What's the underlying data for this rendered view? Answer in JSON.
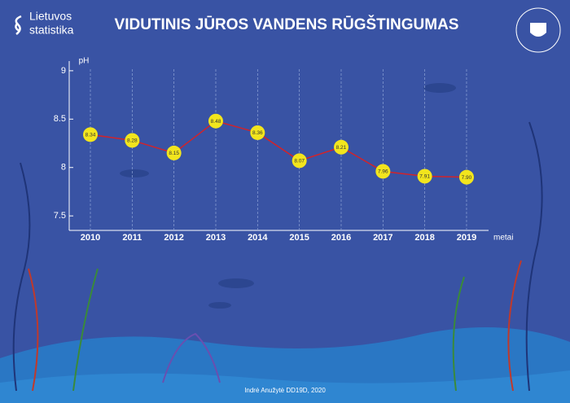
{
  "brand": [
    "Lietuvos",
    "statistika"
  ],
  "credit": "Indrė Anužytė DD19D, 2020",
  "chart_data": {
    "type": "line",
    "title": "VIDUTINIS JŪROS VANDENS RŪGŠTINGUMAS",
    "y_label": "pH",
    "x_label": "metai",
    "categories": [
      "2010",
      "2011",
      "2012",
      "2013",
      "2014",
      "2015",
      "2016",
      "2017",
      "2018",
      "2019"
    ],
    "values": [
      8.34,
      8.28,
      8.15,
      8.48,
      8.36,
      8.07,
      8.21,
      7.96,
      7.91,
      7.9
    ],
    "value_labels": [
      "8.34",
      "8.28",
      "8.15",
      "8.48",
      "8.36",
      "8.07",
      "8.21",
      "7.96",
      "7.91",
      "7.90"
    ],
    "color": "#d2232a",
    "marker_color": "#f2e51d",
    "ylim": [
      7.35,
      9.1
    ],
    "yticks": [
      7.5,
      8,
      8.5,
      9
    ],
    "grid": "x"
  }
}
